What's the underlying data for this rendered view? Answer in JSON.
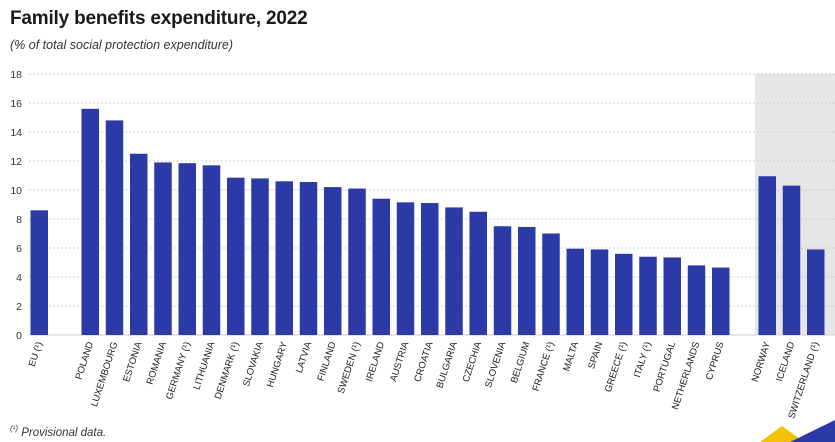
{
  "title": "Family benefits expenditure, 2022",
  "subtitle": "(% of total social protection expenditure)",
  "footnote": {
    "marker": "(¹)",
    "text": " Provisional data."
  },
  "colors": {
    "bar": "#2B3AA7",
    "highlight_band": "#E6E6E6",
    "grid": "#CFCFCF",
    "text": "#1a1a1a",
    "logo_yellow": "#F2C200",
    "logo_blue": "#2B3AA7"
  },
  "chart_data": {
    "type": "bar",
    "title": "Family benefits expenditure, 2022",
    "ylabel": "% of total social protection expenditure",
    "ylim": [
      0,
      18
    ],
    "yticks": [
      0,
      2,
      4,
      6,
      8,
      10,
      12,
      14,
      16,
      18
    ],
    "grid": true,
    "groups": [
      {
        "name": "eu",
        "categories": [
          "EU (¹)"
        ],
        "values": [
          8.6
        ]
      },
      {
        "name": "member-states",
        "categories": [
          "POLAND",
          "LUXEMBOURG",
          "ESTONIA",
          "ROMANIA",
          "GERMANY (¹)",
          "LITHUANIA",
          "DENMARK (¹)",
          "SLOVAKIA",
          "HUNGARY",
          "LATVIA",
          "FINLAND",
          "SWEDEN (¹)",
          "IRELAND",
          "AUSTRIA",
          "CROATIA",
          "BULGARIA",
          "CZECHIA",
          "SLOVENIA",
          "BELGIUM",
          "FRANCE (¹)",
          "MALTA",
          "SPAIN",
          "GREECE (¹)",
          "ITALY (¹)",
          "PORTUGAL",
          "NETHERLANDS",
          "CYPRUS"
        ],
        "values": [
          15.6,
          14.8,
          12.5,
          11.9,
          11.85,
          11.7,
          10.85,
          10.8,
          10.6,
          10.55,
          10.2,
          10.1,
          9.4,
          9.15,
          9.1,
          8.8,
          8.5,
          7.5,
          7.45,
          7.0,
          5.95,
          5.9,
          5.6,
          5.4,
          5.35,
          4.8,
          4.65
        ]
      },
      {
        "name": "efta",
        "highlighted": true,
        "categories": [
          "NORWAY",
          "ICELAND",
          "SWITZERLAND (¹)"
        ],
        "values": [
          10.95,
          10.3,
          5.9
        ]
      }
    ]
  }
}
